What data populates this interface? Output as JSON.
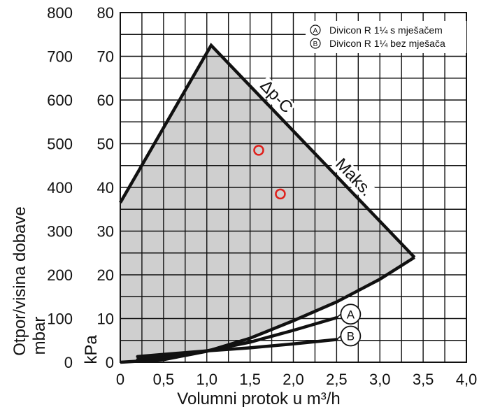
{
  "chart_data": {
    "type": "line",
    "xlabel": "Volumni protok u m³/h",
    "ylabel_mbar": "Otpor/visina dobave mbar",
    "ylabel_kpa": "kPa",
    "xlim": [
      0,
      4.0
    ],
    "ylim_kpa": [
      0,
      80
    ],
    "ylim_mbar": [
      0,
      800
    ],
    "x_ticks": [
      "0",
      "0,5",
      "1,0",
      "1,5",
      "2,0",
      "2,5",
      "3,0",
      "3,5",
      "4,0"
    ],
    "y_ticks_kpa": [
      "0",
      "10",
      "20",
      "30",
      "40",
      "50",
      "60",
      "70",
      "80"
    ],
    "y_ticks_mbar": [
      "0",
      "100",
      "200",
      "300",
      "400",
      "500",
      "600",
      "700",
      "800"
    ],
    "grid": true,
    "legend_position": "top-right",
    "legend": [
      {
        "marker": "A",
        "text": "Divicon R 1¼ s mješačem"
      },
      {
        "marker": "B",
        "text": "Divicon R 1¼ bez mješača"
      }
    ],
    "pump_area": {
      "fill_color": "#cfcfcf",
      "upper_curve_x": [
        0,
        1.05,
        3.4
      ],
      "upper_curve_y": [
        36.5,
        72.5,
        24
      ],
      "lower_curve_x": [
        0,
        0.5,
        1.0,
        1.5,
        2.0,
        2.5,
        3.0,
        3.4
      ],
      "lower_curve_y": [
        0.0,
        0.6,
        2.5,
        5.5,
        9.5,
        13.8,
        19.0,
        24.0
      ]
    },
    "curve_labels": [
      "Δp-C",
      "Maks."
    ],
    "series": [
      {
        "name": "A",
        "x": [
          0.2,
          0.5,
          1.0,
          1.5,
          2.0,
          2.5
        ],
        "y": [
          0.6,
          1.2,
          2.6,
          4.6,
          7.3,
          10.2
        ]
      },
      {
        "name": "B",
        "x": [
          0.2,
          0.5,
          1.0,
          1.5,
          2.0,
          2.5
        ],
        "y": [
          1.3,
          1.8,
          2.6,
          3.3,
          4.2,
          5.2
        ]
      }
    ],
    "highlight_points": {
      "color": "#e0201b",
      "points": [
        {
          "x": 1.6,
          "y": 48.5
        },
        {
          "x": 1.85,
          "y": 38.5
        }
      ]
    }
  }
}
